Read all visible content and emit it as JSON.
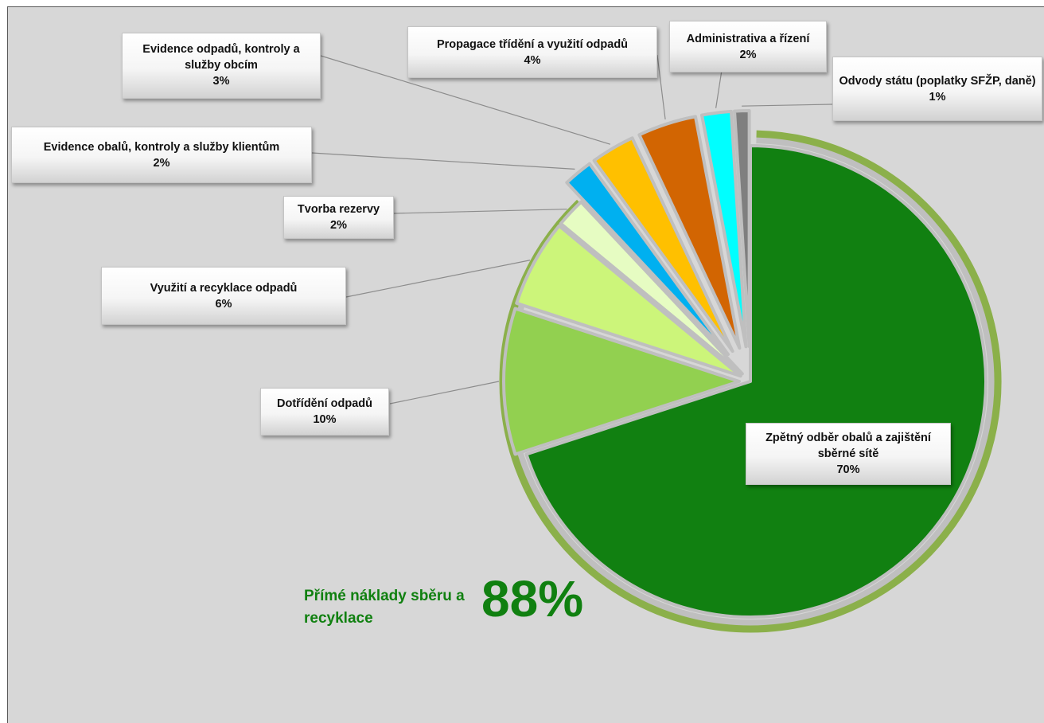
{
  "chart_data": {
    "type": "pie",
    "slices": [
      {
        "label": "Zpětný odběr obalů a zajištění sběrné sítě",
        "value": 70,
        "value_label": "70%",
        "color": "#118011"
      },
      {
        "label": "Dotřídění odpadů",
        "value": 10,
        "value_label": "10%",
        "color": "#92d050"
      },
      {
        "label": "Využití a recyklace odpadů",
        "value": 6,
        "value_label": "6%",
        "color": "#ccf57a"
      },
      {
        "label": "Tvorba rezervy",
        "value": 2,
        "value_label": "2%",
        "color": "#e6fcc2"
      },
      {
        "label": "Evidence obalů, kontroly a služby klientům",
        "value": 2,
        "value_label": "2%",
        "color": "#00b0f0"
      },
      {
        "label": "Evidence odpadů, kontroly a služby obcím",
        "value": 3,
        "value_label": "3%",
        "color": "#ffc000"
      },
      {
        "label": "Propagace třídění a využití odpadů",
        "value": 4,
        "value_label": "4%",
        "color": "#d26502"
      },
      {
        "label": "Administrativa a řízení",
        "value": 2,
        "value_label": "2%",
        "color": "#00ffff"
      },
      {
        "label": "Odvody státu (poplatky SFŽP, daně)",
        "value": 1,
        "value_label": "1%",
        "color": "#7f7f7f"
      }
    ],
    "summary": {
      "text": "Přímé náklady sběru a recyklace",
      "value": 88,
      "value_label": "88%",
      "color": "#108010",
      "arc_color": "#8bb04a"
    }
  }
}
